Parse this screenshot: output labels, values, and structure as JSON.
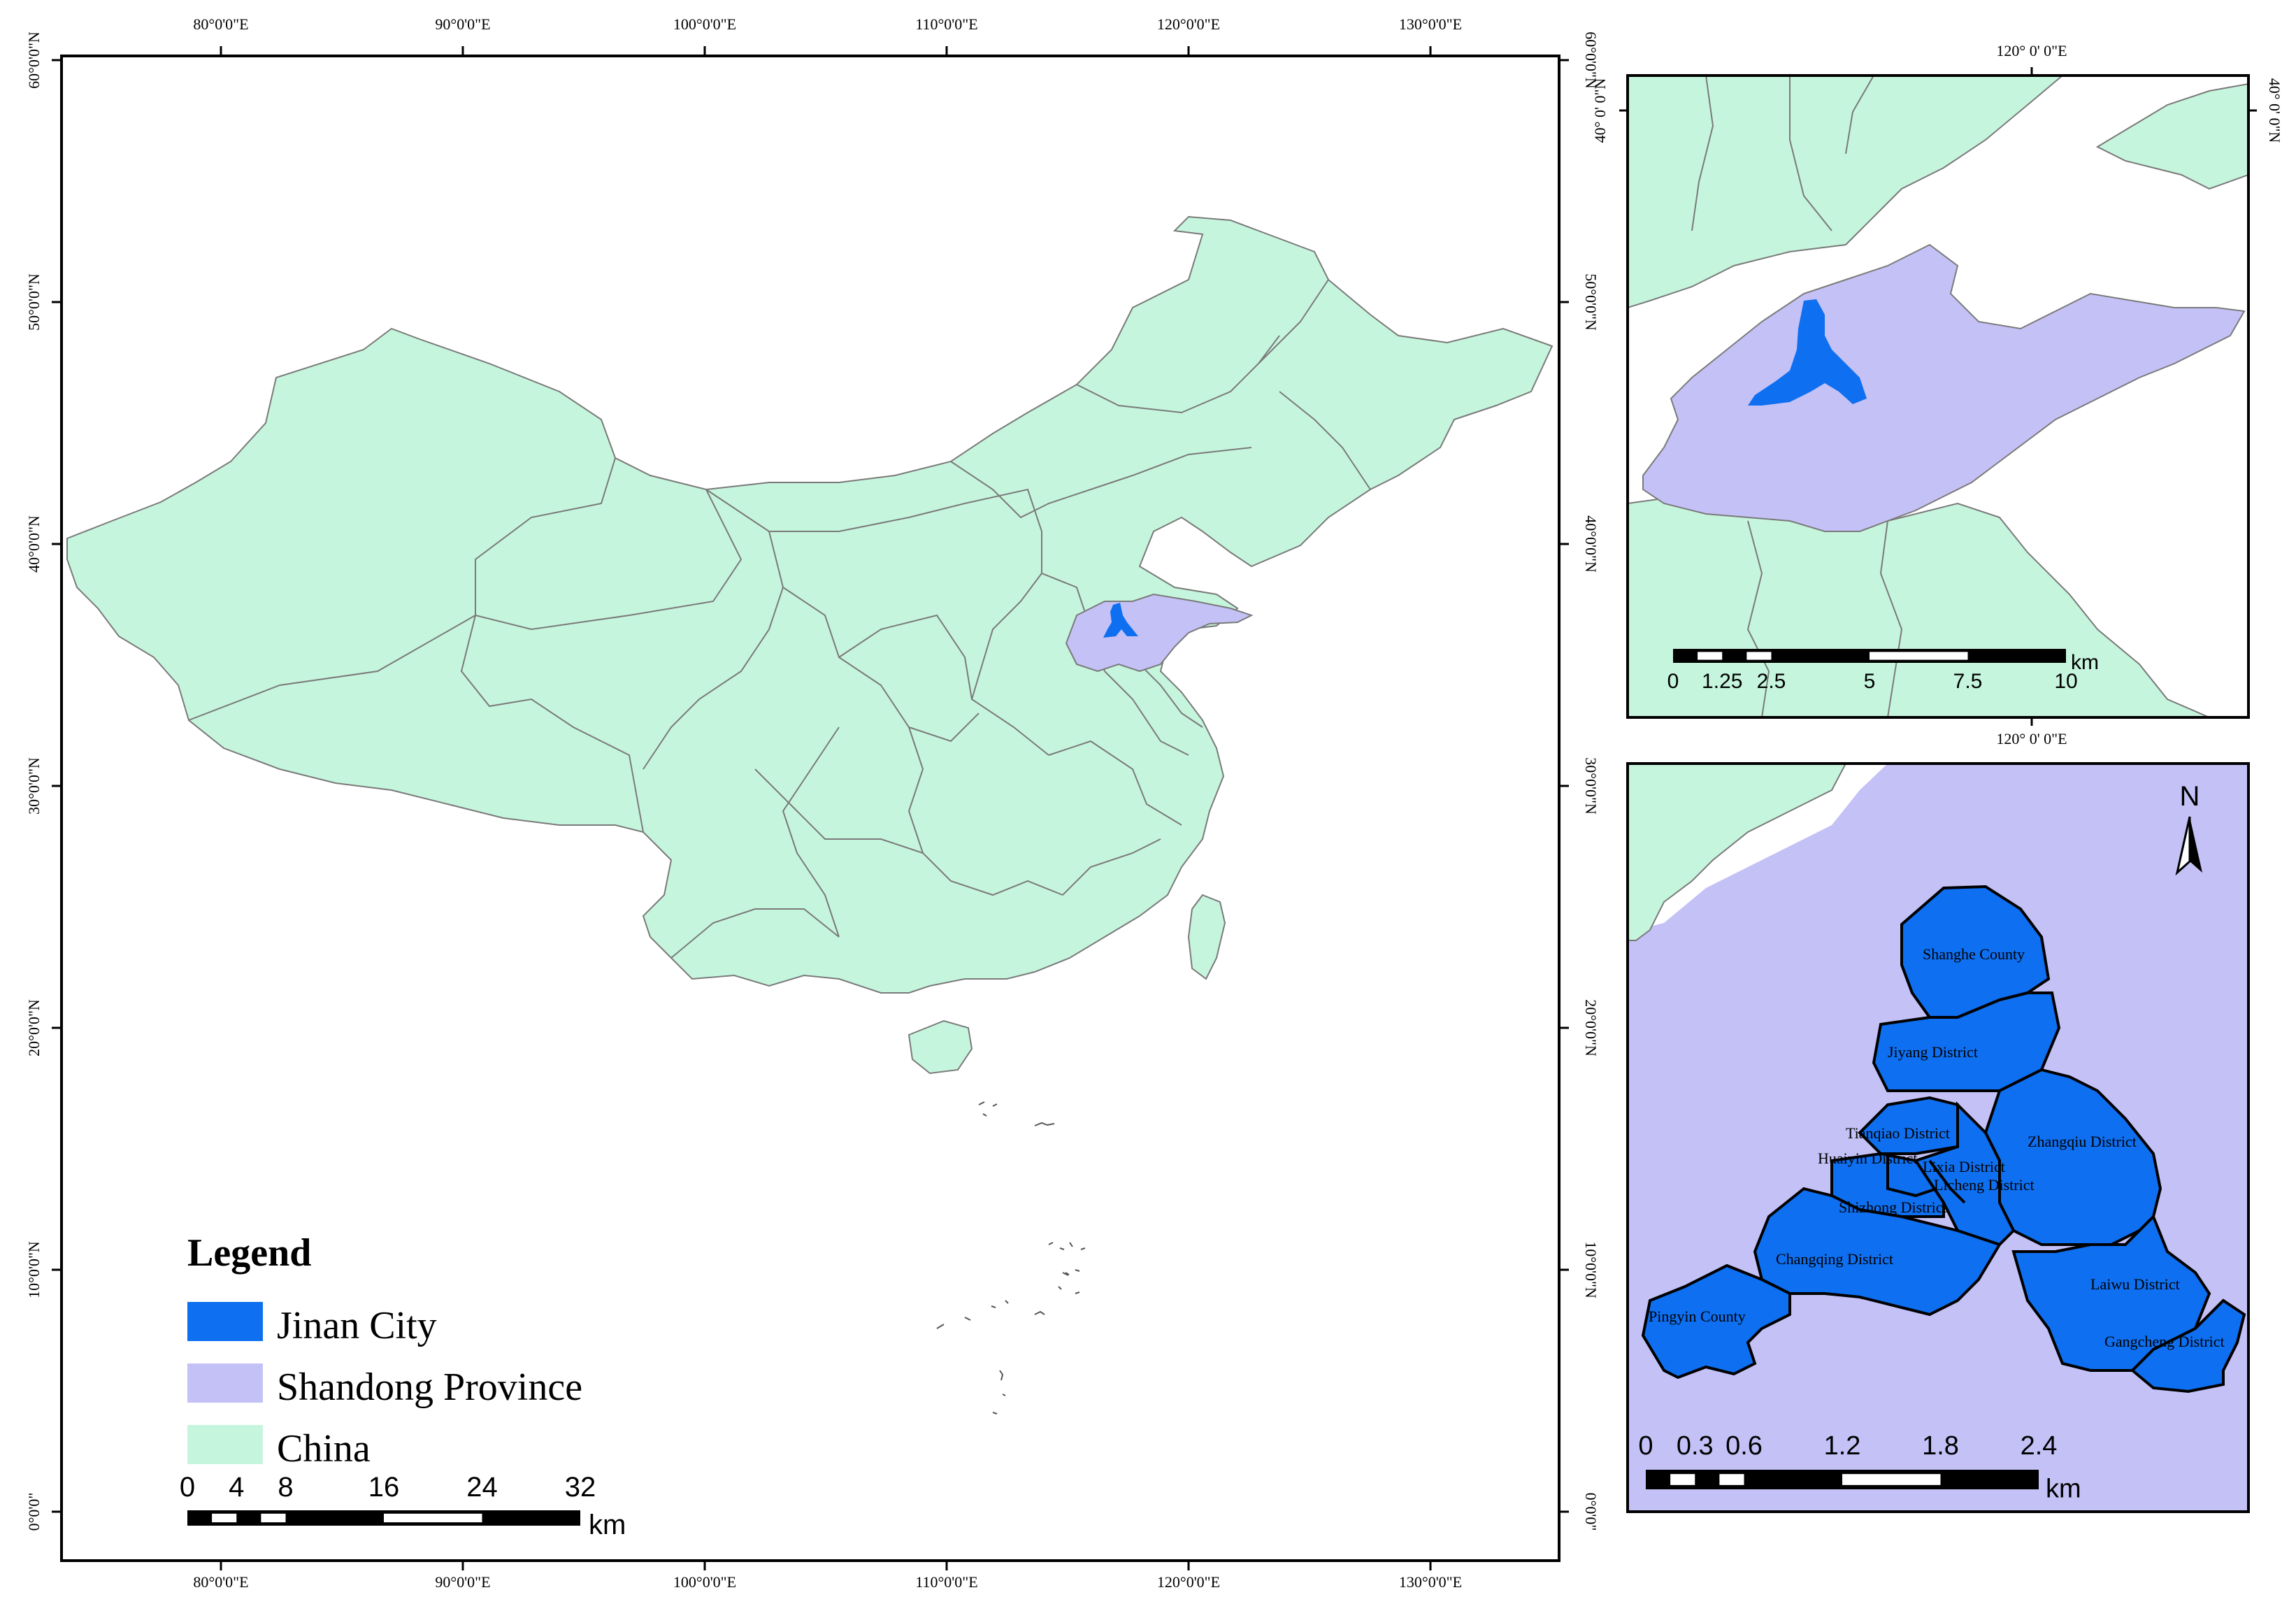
{
  "colors": {
    "china": "#c6f5dd",
    "shandong": "#c4c1f6",
    "jinan": "#0e6ff0",
    "sea": "#ffffff",
    "boundary": "#7a7a7a",
    "frame": "#000000"
  },
  "main_map": {
    "x_ticks": [
      "80°0'0\"E",
      "90°0'0\"E",
      "100°0'0\"E",
      "110°0'0\"E",
      "120°0'0\"E",
      "130°0'0\"E"
    ],
    "y_ticks_left": [
      "60°0'0\"N",
      "50°0'0\"N",
      "40°0'0\"N",
      "30°0'0\"N",
      "20°0'0\"N",
      "10°0'0\"N",
      "0°0'0\""
    ],
    "y_ticks_right": [
      "60°0'0\"N",
      "50°0'0\"N",
      "40°0'0\"N",
      "30°0'0\"N",
      "20°0'0\"N",
      "10°0'0\"N",
      "0°0'0\""
    ],
    "legend": {
      "title": "Legend",
      "items": [
        {
          "label": "Jinan City",
          "color": "#0e6ff0"
        },
        {
          "label": "Shandong Province",
          "color": "#c4c1f6"
        },
        {
          "label": "China",
          "color": "#c6f5dd"
        }
      ]
    },
    "scalebar": {
      "ticks": [
        "0",
        "4",
        "8",
        "16",
        "24",
        "32"
      ],
      "unit": "km"
    }
  },
  "inset_shandong": {
    "x_tick": "120° 0' 0\"E",
    "y_tick": "40° 0' 0\"N",
    "scalebar": {
      "ticks": [
        "0",
        "1.25",
        "2.5",
        "5",
        "7.5",
        "10"
      ],
      "unit": "km"
    }
  },
  "inset_jinan": {
    "north_label": "N",
    "districts": [
      "Shanghe County",
      "Jiyang District",
      "Tianqiao District",
      "Huaiyin District",
      "Lixia District",
      "Licheng District",
      "Shizhong District",
      "Zhangqiu District",
      "Changqing District",
      "Pingyin County",
      "Laiwu District",
      "Gangcheng District"
    ],
    "scalebar": {
      "ticks": [
        "0",
        "0.3",
        "0.6",
        "1.2",
        "1.8",
        "2.4"
      ],
      "unit": "km"
    }
  }
}
